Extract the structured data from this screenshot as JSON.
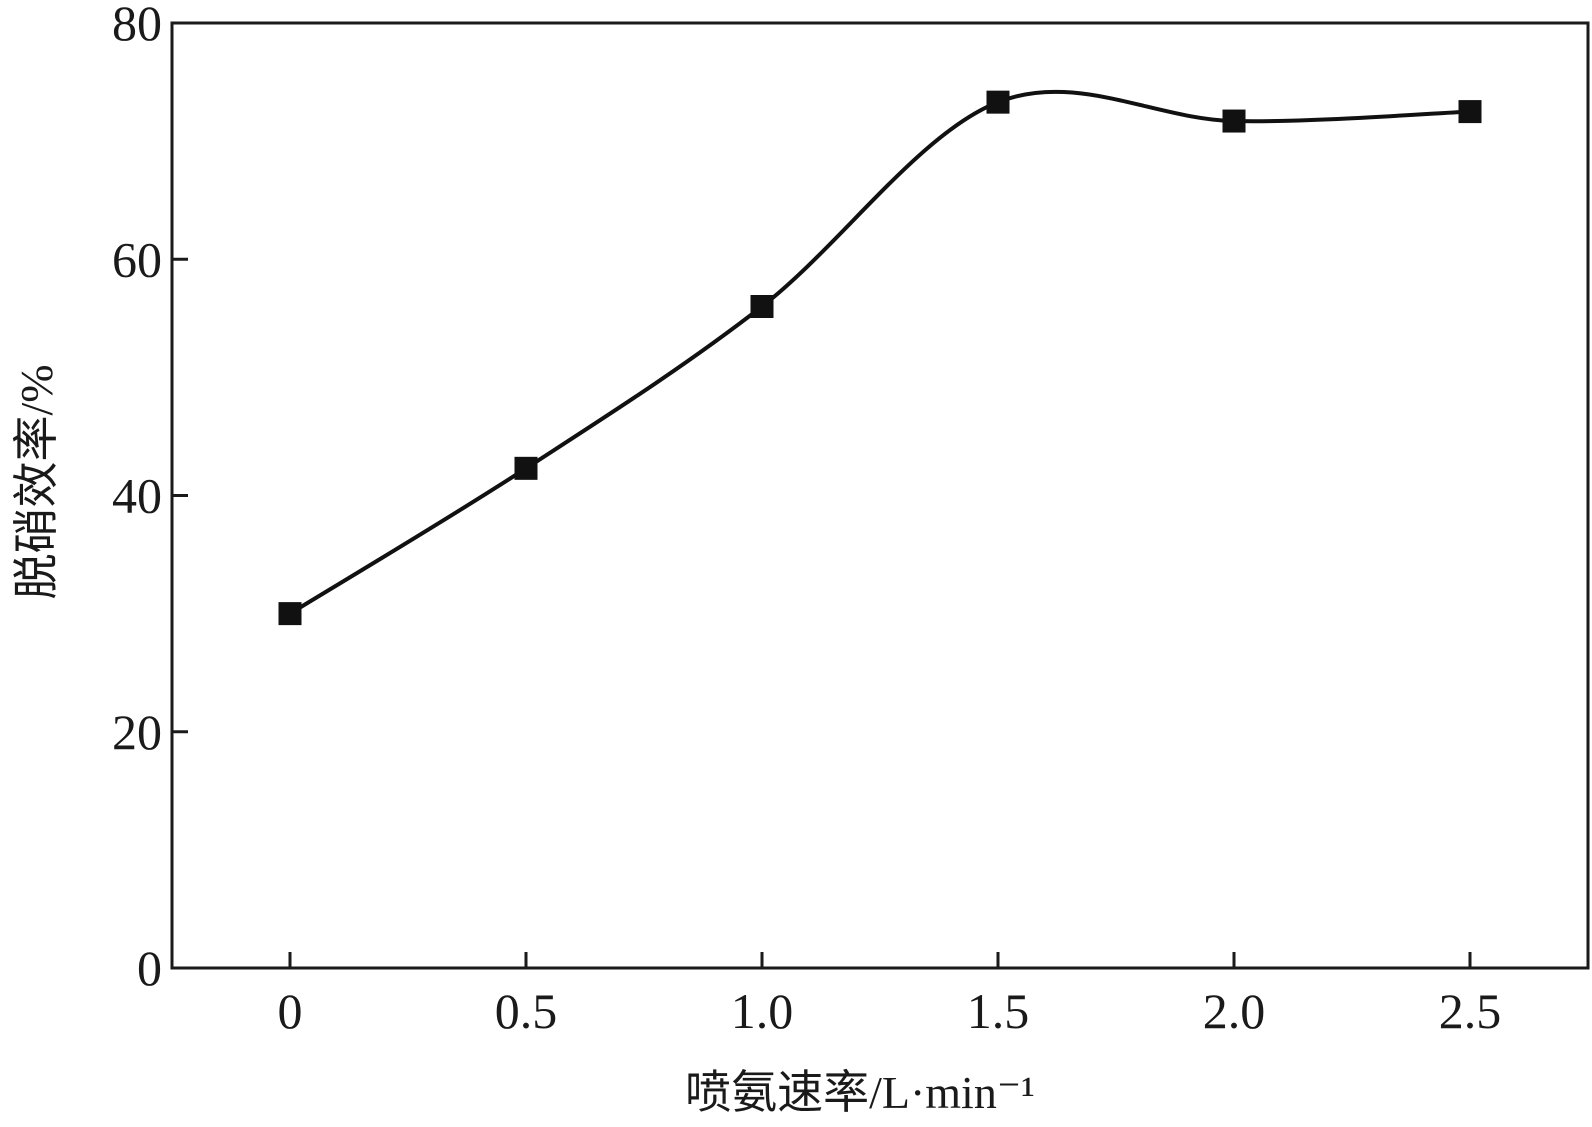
{
  "chart_data": {
    "type": "line",
    "title": "",
    "xlabel": "喷氨速率/L·min⁻¹",
    "ylabel": "脱硝效率/%",
    "xlim": [
      -0.25,
      2.75
    ],
    "ylim": [
      0,
      80
    ],
    "x_ticks": [
      0,
      0.5,
      1.0,
      1.5,
      2.0,
      2.5
    ],
    "x_tick_labels": [
      "0",
      "0.5",
      "1.0",
      "1.5",
      "2.0",
      "2.5"
    ],
    "y_ticks": [
      0,
      20,
      40,
      60,
      80
    ],
    "y_tick_labels": [
      "0",
      "20",
      "40",
      "60",
      "80"
    ],
    "grid": false,
    "series": [
      {
        "marker": "square",
        "smooth": true,
        "x": [
          0,
          0.5,
          1.0,
          1.5,
          2.0,
          2.5
        ],
        "y": [
          30.0,
          42.3,
          56.0,
          73.3,
          71.7,
          72.5
        ]
      }
    ]
  }
}
